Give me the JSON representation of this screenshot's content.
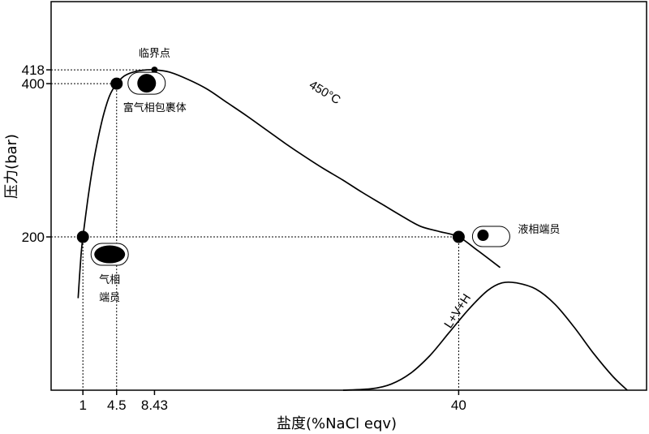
{
  "chart_data": {
    "type": "line",
    "title": "",
    "xlabel": "盐度(%NaCl eqv)",
    "ylabel": "压力(bar)",
    "xlim": [
      -2.3,
      59.5
    ],
    "ylim": [
      0,
      507
    ],
    "x_ticks": [
      {
        "value": 1,
        "label": "1"
      },
      {
        "value": 4.5,
        "label": "4.5"
      },
      {
        "value": 8.43,
        "label": "8.43"
      },
      {
        "value": 40,
        "label": "40"
      }
    ],
    "y_ticks": [
      {
        "value": 200,
        "label": "200"
      },
      {
        "value": 400,
        "label": "400"
      },
      {
        "value": 418,
        "label": "418"
      }
    ],
    "series": [
      {
        "name": "450°C",
        "label": "450°C",
        "x": [
          0.5,
          0.8,
          1.0,
          1.5,
          2.0,
          2.6,
          3.2,
          3.8,
          4.5,
          5.3,
          6.2,
          7.2,
          8.43,
          10,
          12,
          14,
          16,
          18,
          20,
          22,
          24,
          26,
          28,
          30,
          32,
          34,
          36,
          38,
          40,
          42,
          44.3
        ],
        "y": [
          120,
          175,
          200,
          248,
          290,
          330,
          362,
          385,
          400,
          410,
          415,
          417.5,
          418,
          415,
          405,
          392,
          375,
          358,
          340,
          322,
          305,
          289,
          274,
          258,
          243,
          228,
          214,
          207,
          200,
          182,
          160
        ]
      },
      {
        "name": "L+V+H",
        "label": "L+V+H",
        "x": [
          28,
          31,
          33,
          35,
          37,
          39,
          41,
          43,
          44.5,
          46,
          48,
          50,
          52,
          54,
          56,
          57.5
        ],
        "y": [
          0,
          2,
          8,
          22,
          45,
          75,
          105,
          130,
          140,
          140,
          132,
          112,
          82,
          48,
          18,
          0
        ]
      }
    ],
    "points": [
      {
        "x": 1,
        "y": 200,
        "label": "气相端员",
        "lines": [
          "气相",
          "端员"
        ],
        "inclusion": "vapor"
      },
      {
        "x": 4.5,
        "y": 400,
        "label": "富气相包裹体",
        "lines": [
          "富气相包裹体"
        ],
        "inclusion": "vapor-rich"
      },
      {
        "x": 8.43,
        "y": 418,
        "label": "临界点",
        "lines": [
          "临界点"
        ],
        "inclusion": "none"
      },
      {
        "x": 40,
        "y": 200,
        "label": "液相端员",
        "lines": [
          "液相端员"
        ],
        "inclusion": "liquid"
      }
    ]
  }
}
